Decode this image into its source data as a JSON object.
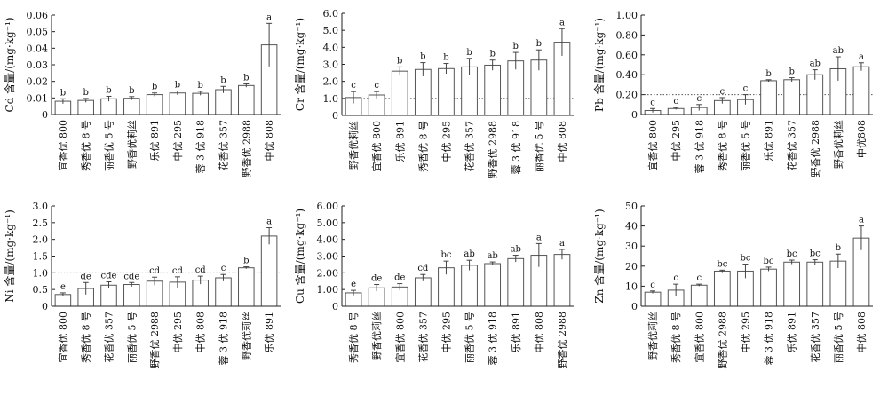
{
  "chart_data": [
    {
      "type": "bar",
      "ylabel": "Cd 含量/(mg·kg⁻¹)",
      "ylim": [
        0,
        0.06
      ],
      "yticks": [
        "0",
        "0.01",
        "0.02",
        "0.03",
        "0.04",
        "0.05",
        "0.06"
      ],
      "categories": [
        "宜香优 800",
        "秀香优 8 号",
        "丽香优 5 号",
        "野香优莉丝",
        "乐优 891",
        "中优 295",
        "蓉 3 优 918",
        "花香优 357",
        "野香优 2988",
        "中优 808"
      ],
      "values": [
        0.008,
        0.0085,
        0.0095,
        0.0098,
        0.012,
        0.013,
        0.0128,
        0.015,
        0.0175,
        0.042
      ],
      "errors": [
        0.0015,
        0.0012,
        0.0015,
        0.001,
        0.001,
        0.0012,
        0.0012,
        0.002,
        0.001,
        0.013
      ],
      "labels": [
        "b",
        "b",
        "b",
        "b",
        "b",
        "b",
        "b",
        "b",
        "b",
        "a"
      ],
      "reference_line": null,
      "grid": false
    },
    {
      "type": "bar",
      "ylabel": "Cr 含量/(mg·kg⁻¹)",
      "ylim": [
        0,
        6
      ],
      "yticks": [
        "0",
        "1.0",
        "2.0",
        "3.0",
        "4.0",
        "5.0",
        "6.0"
      ],
      "categories": [
        "野香优莉丝",
        "宜香优 800",
        "乐优 891",
        "秀香优 8 号",
        "中优 295",
        "花香优 357",
        "野香优 2988",
        "蓉 3 优 918",
        "丽香优 5 号",
        "中优 808"
      ],
      "values": [
        1.05,
        1.2,
        2.6,
        2.7,
        2.75,
        2.85,
        2.95,
        3.2,
        3.25,
        4.3
      ],
      "errors": [
        0.35,
        0.2,
        0.25,
        0.4,
        0.3,
        0.5,
        0.3,
        0.5,
        0.6,
        0.8
      ],
      "labels": [
        "c",
        "c",
        "b",
        "b",
        "b",
        "b",
        "b",
        "b",
        "b",
        "a"
      ],
      "reference_line": 1.0,
      "grid": false
    },
    {
      "type": "bar",
      "ylabel": "Pb 含量/(mg·kg⁻¹)",
      "ylim": [
        0,
        1.0
      ],
      "yticks": [
        "0",
        "0.20",
        "0.40",
        "0.60",
        "0.80",
        "1.00"
      ],
      "categories": [
        "宜香优 800",
        "中优 295",
        "蓉 3 优 918",
        "秀香优 8 号",
        "丽香优 5 号",
        "乐优 891",
        "花香优 357",
        "野香优 2988",
        "野香优莉丝",
        "中优808"
      ],
      "values": [
        0.04,
        0.06,
        0.07,
        0.14,
        0.15,
        0.34,
        0.35,
        0.4,
        0.46,
        0.48
      ],
      "errors": [
        0.02,
        0.01,
        0.03,
        0.03,
        0.05,
        0.01,
        0.02,
        0.05,
        0.12,
        0.04
      ],
      "labels": [
        "c",
        "c",
        "c",
        "c",
        "c",
        "b",
        "b",
        "ab",
        "ab",
        "a"
      ],
      "reference_line": 0.2,
      "grid": false
    },
    {
      "type": "bar",
      "ylabel": "Ni 含量/(mg·kg⁻¹)",
      "ylim": [
        0,
        3.0
      ],
      "yticks": [
        "0",
        "0.5",
        "1.0",
        "1.5",
        "2.0",
        "2.5",
        "3.0"
      ],
      "categories": [
        "宜香优 800",
        "秀香优 8 号",
        "花香优 357",
        "丽香优 5 号",
        "野香优 2988",
        "中优 295",
        "中优 808",
        "蓉 3 优 918",
        "野香优莉丝",
        "乐优 891"
      ],
      "values": [
        0.35,
        0.53,
        0.63,
        0.65,
        0.75,
        0.72,
        0.78,
        0.85,
        1.15,
        2.1
      ],
      "errors": [
        0.05,
        0.18,
        0.1,
        0.06,
        0.12,
        0.16,
        0.12,
        0.1,
        0.03,
        0.25
      ],
      "labels": [
        "e",
        "de",
        "cde",
        "cde",
        "cd",
        "cd",
        "cd",
        "c",
        "b",
        "a"
      ],
      "reference_line": 1.0,
      "grid": false
    },
    {
      "type": "bar",
      "ylabel": "Cu 含量/(mg·kg⁻¹)",
      "ylim": [
        0,
        6.0
      ],
      "yticks": [
        "0",
        "1.00",
        "2.00",
        "3.00",
        "4.00",
        "5.00",
        "6.00"
      ],
      "categories": [
        "秀香优 8 号",
        "野香优莉丝",
        "宜香优 800",
        "花香优 357",
        "中优 295",
        "丽香优 5 号",
        "蓉 3 优 918",
        "乐优 891",
        "中优 808",
        "野香优 2988"
      ],
      "values": [
        0.8,
        1.1,
        1.15,
        1.7,
        2.3,
        2.45,
        2.55,
        2.85,
        3.05,
        3.1
      ],
      "errors": [
        0.15,
        0.2,
        0.2,
        0.2,
        0.4,
        0.3,
        0.1,
        0.2,
        0.7,
        0.3
      ],
      "labels": [
        "e",
        "de",
        "de",
        "cd",
        "bc",
        "ab",
        "ab",
        "ab",
        "a",
        "a"
      ],
      "reference_line": null,
      "grid": false
    },
    {
      "type": "bar",
      "ylabel": "Zn 含量/(mg·kg⁻¹)",
      "ylim": [
        0,
        50
      ],
      "yticks": [
        "0",
        "10",
        "20",
        "30",
        "40",
        "50"
      ],
      "categories": [
        "野香优莉丝",
        "秀香优 8 号",
        "宜香优 800",
        "野香优 2988",
        "中优 295",
        "蓉 3 优 918",
        "乐优 891",
        "花香优 357",
        "丽香优 5 号",
        "中优 808"
      ],
      "values": [
        7,
        8,
        10.5,
        17.5,
        17.5,
        18.5,
        22,
        22,
        22.5,
        34
      ],
      "errors": [
        0.6,
        3,
        0.5,
        0.5,
        3.5,
        1,
        1,
        1.2,
        3.5,
        6
      ],
      "labels": [
        "c",
        "c",
        "c",
        "bc",
        "bc",
        "bc",
        "bc",
        "bc",
        "b",
        "a"
      ],
      "reference_line": null,
      "grid": false
    }
  ]
}
